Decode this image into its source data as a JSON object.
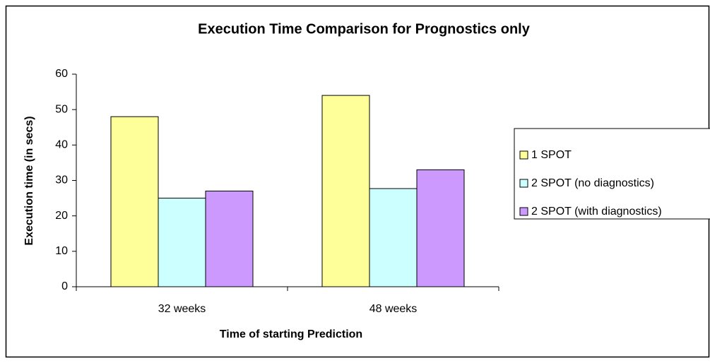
{
  "chart_data": {
    "type": "bar",
    "title": "Execution Time Comparison for Prognostics only",
    "x_label": "Time of starting Prediction",
    "y_label": "Execution time (in secs)",
    "categories": [
      "32 weeks",
      "48 weeks"
    ],
    "series": [
      {
        "name": "1 SPOT",
        "color": "#ffff99",
        "values": [
          48,
          54
        ]
      },
      {
        "name": "2 SPOT (no diagnostics)",
        "color": "#ccffff",
        "values": [
          25,
          27.7
        ]
      },
      {
        "name": "2 SPOT (with diagnostics)",
        "color": "#cc99ff",
        "values": [
          27,
          33
        ]
      }
    ],
    "ylim": [
      0,
      60
    ],
    "yticks": [
      0,
      10,
      20,
      30,
      40,
      50,
      60
    ],
    "legend": "right"
  }
}
